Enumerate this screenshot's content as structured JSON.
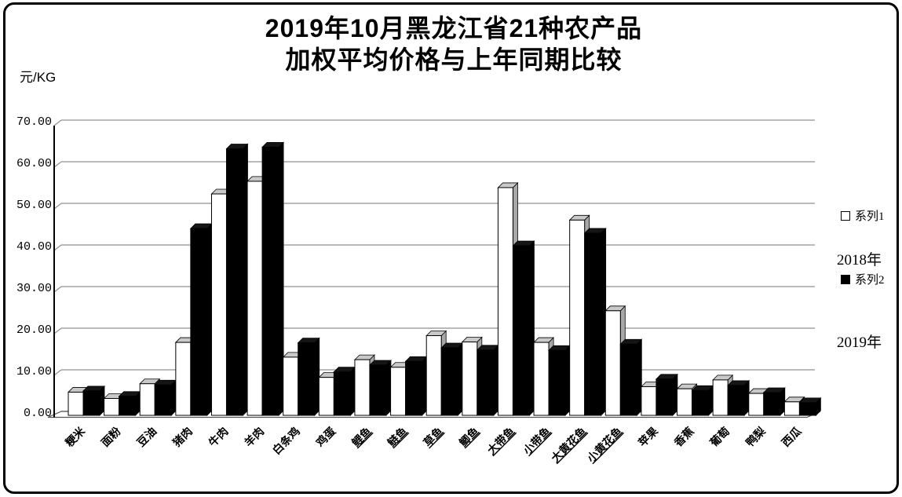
{
  "window": {
    "background": "#ffffff",
    "border_color": "#000000"
  },
  "title": {
    "line1": "2019年10月黑龙江省21种农产品",
    "line2": "加权平均价格与上年同期比较"
  },
  "y_axis_unit": "元/KG",
  "legend": {
    "series1_label": "系列1",
    "series2_label": "系列2",
    "series1_color": "#ffffff",
    "series2_color": "#000000",
    "year1_label": "2018年",
    "year2_label": "2019年"
  },
  "chart_data": {
    "type": "bar",
    "title": "2019年10月黑龙江省21种农产品加权平均价格与上年同期比较",
    "xlabel": "",
    "ylabel": "元/KG",
    "ylim": [
      0,
      70
    ],
    "ytick_step": 10,
    "ytick_labels": [
      "0.00",
      "10.00",
      "20.00",
      "30.00",
      "40.00",
      "50.00",
      "60.00",
      "70.00"
    ],
    "grid": true,
    "legend_position": "right",
    "style": "3d-bar-excel",
    "categories": [
      "粳米",
      "面粉",
      "豆油",
      "猪肉",
      "牛肉",
      "羊肉",
      "白条鸡",
      "鸡蛋",
      "鲤鱼",
      "鲢鱼",
      "草鱼",
      "鲫鱼",
      "大带鱼",
      "小带鱼",
      "大黄花鱼",
      "小黄花鱼",
      "苹果",
      "香蕉",
      "葡萄",
      "鸭梨",
      "西瓜"
    ],
    "underlined_category_indices": [
      8,
      9,
      10,
      11,
      12,
      13,
      14,
      15
    ],
    "series": [
      {
        "name": "系列1",
        "color": "#ffffff",
        "values": [
          5.5,
          4.0,
          7.5,
          17.3,
          52.5,
          55.5,
          13.8,
          9.0,
          13.2,
          11.4,
          18.9,
          17.4,
          54.0,
          17.3,
          46.3,
          24.8,
          6.8,
          6.3,
          8.4,
          5.2,
          3.2
        ]
      },
      {
        "name": "系列2",
        "color": "#000000",
        "values": [
          5.8,
          4.5,
          7.2,
          44.3,
          63.2,
          63.6,
          17.2,
          10.3,
          11.9,
          12.8,
          16.0,
          15.5,
          40.2,
          15.4,
          43.2,
          16.9,
          8.6,
          5.9,
          7.1,
          5.4,
          3.0
        ]
      }
    ]
  },
  "colors": {
    "gridline": "#909090",
    "axis": "#000000",
    "floor_edge": "#555555",
    "white_bar_cap": "#c9c9c9",
    "white_bar_side": "#a8a8a8",
    "black_bar": "#000000"
  }
}
